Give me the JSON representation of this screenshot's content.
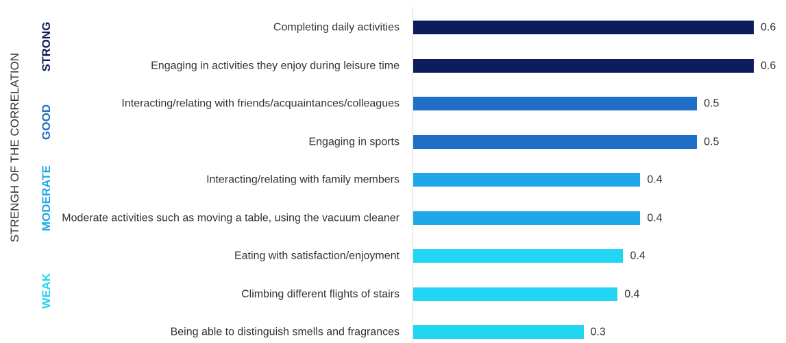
{
  "chart_data": {
    "type": "bar",
    "orientation": "horizontal",
    "y_label": "STRENGH OF THE CORRELATION",
    "categories": [
      "Completing daily activities",
      "Engaging in activities they enjoy during leisure time",
      "Interacting/relating with friends/acquaintances/colleagues",
      "Engaging in sports",
      "Interacting/relating with family members",
      "Moderate activities such as moving a table, using the vacuum cleaner",
      "Eating with satisfaction/enjoyment",
      "Climbing different flights of stairs",
      "Being able to distinguish smells and fragrances"
    ],
    "values": [
      0.6,
      0.6,
      0.5,
      0.5,
      0.4,
      0.4,
      0.37,
      0.36,
      0.3
    ],
    "value_labels": [
      "0.6",
      "0.6",
      "0.5",
      "0.5",
      "0.4",
      "0.4",
      "0.4",
      "0.4",
      "0.3"
    ],
    "colors": [
      "#0d1c5c",
      "#0d1c5c",
      "#1f6fc6",
      "#1f6fc6",
      "#1ea8ea",
      "#1ea8ea",
      "#22d5f2",
      "#22d5f2",
      "#22d5f2"
    ],
    "xlim": [
      0,
      0.6
    ],
    "groups": [
      {
        "label": "STRONG",
        "color": "#0d1c5c"
      },
      {
        "label": "GOOD",
        "color": "#1f6fc6"
      },
      {
        "label": "MODERATE",
        "color": "#1ea8ea"
      },
      {
        "label": "WEAK",
        "color": "#22d5f2"
      }
    ]
  }
}
